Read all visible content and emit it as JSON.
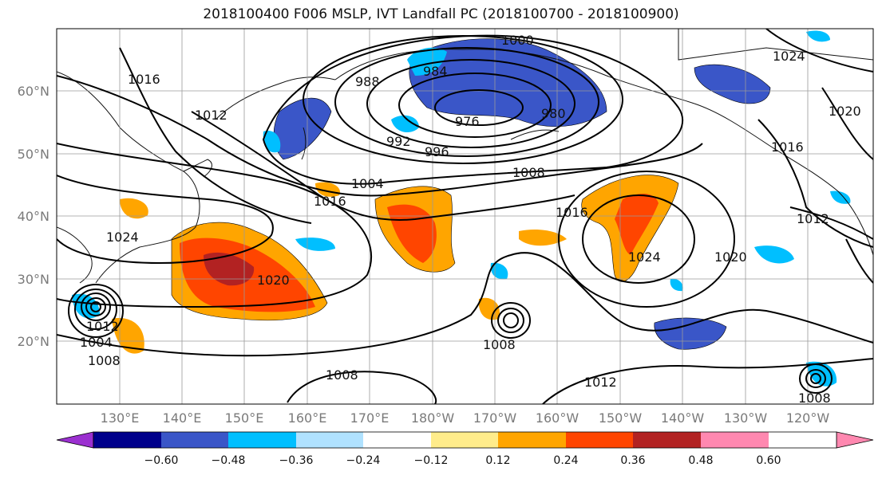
{
  "title": "2018100400 F006 MSLP, IVT Landfall PC (2018100700 - 2018100900)",
  "lat_labels": [
    "20°N",
    "30°N",
    "40°N",
    "50°N",
    "60°N"
  ],
  "lon_labels": [
    "130°E",
    "140°E",
    "150°E",
    "160°E",
    "170°E",
    "180°W",
    "170°W",
    "160°W",
    "150°W",
    "140°W",
    "130°W",
    "120°W"
  ],
  "isobar_labels": [
    "1000",
    "1024",
    "988",
    "984",
    "1016",
    "976",
    "980",
    "1020",
    "1012",
    "992",
    "996",
    "1008",
    "1004",
    "1016",
    "1016",
    "1012",
    "1024",
    "1024",
    "1020",
    "1020",
    "1012",
    "1008",
    "1004",
    "1008",
    "1008",
    "1012",
    "1008",
    "1016"
  ],
  "colorbar": {
    "ticks": [
      "−0.60",
      "−0.48",
      "−0.36",
      "−0.24",
      "−0.12",
      "0.12",
      "0.24",
      "0.36",
      "0.48",
      "0.60"
    ],
    "colors": [
      "#9b30d0",
      "#00008b",
      "#3a56c8",
      "#00bfff",
      "#b0e2ff",
      "#ffffff",
      "#ffec8b",
      "#ffa500",
      "#ff4500",
      "#b22222",
      "#ff88b0"
    ]
  }
}
